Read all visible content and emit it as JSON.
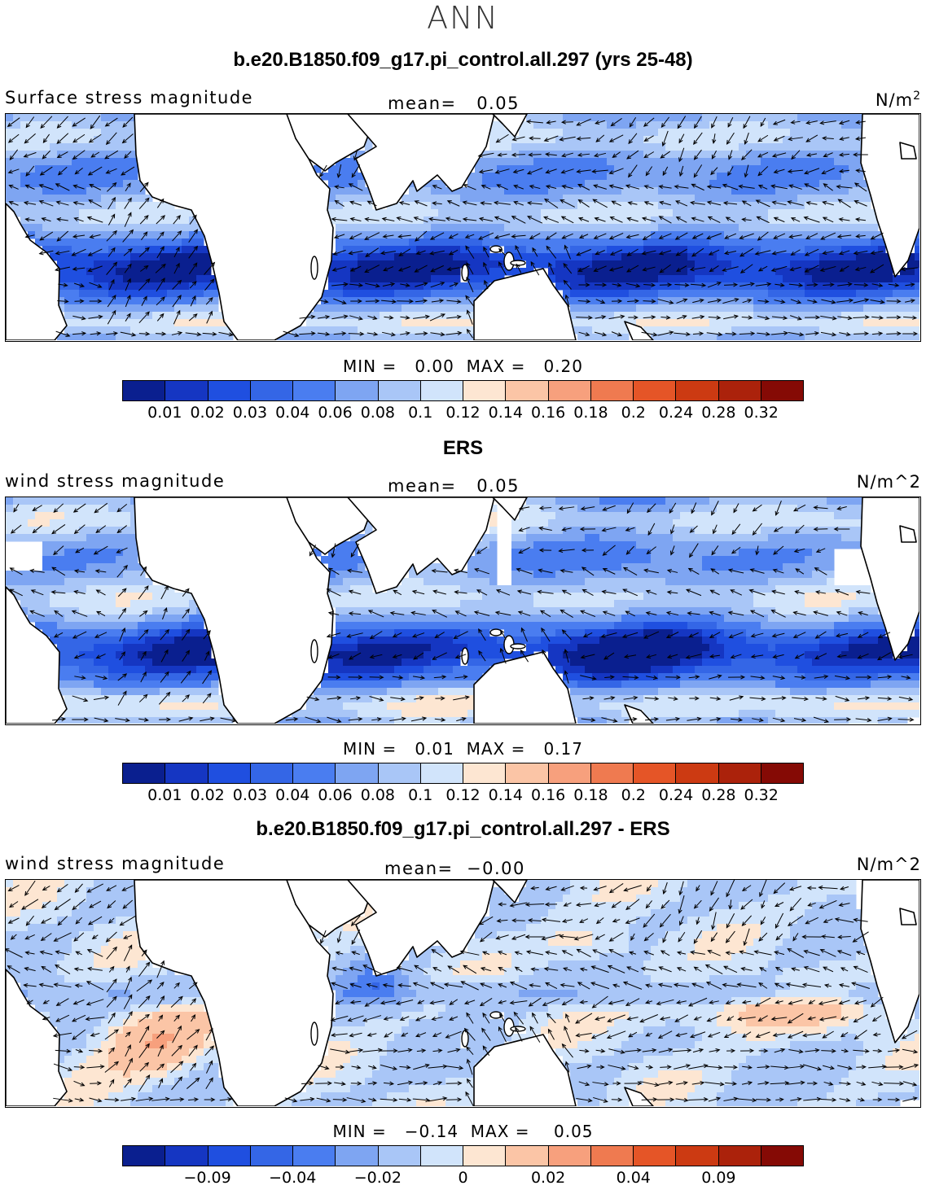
{
  "page_title": "ANN",
  "colors": {
    "scale": [
      "#0a1f8f",
      "#1536c2",
      "#1f4fe0",
      "#3466e6",
      "#4a7df0",
      "#7ea5f2",
      "#a9c6f7",
      "#d1e4fb",
      "#fde6d2",
      "#fbc5a6",
      "#f7a07d",
      "#ef7a50",
      "#e55527",
      "#cc3a12",
      "#ab220b",
      "#850a05"
    ],
    "land": "#ffffff",
    "coast": "#000000"
  },
  "panels": [
    {
      "title": "b.e20.B1850.f09_g17.pi_control.all.297 (yrs 25-48)",
      "variable": "Surface stress magnitude",
      "mean_label": "mean=",
      "mean_value": "0.05",
      "units": "N/m",
      "units_sup": "2",
      "min_label": "MIN =",
      "min_value": "0.00",
      "max_label": "MAX =",
      "max_value": "0.20",
      "colorbar_ticks": [
        "0.01",
        "0.02",
        "0.03",
        "0.04",
        "0.06",
        "0.08",
        "0.1",
        "0.12",
        "0.14",
        "0.16",
        "0.18",
        "0.2",
        "0.24",
        "0.28",
        "0.32"
      ],
      "field": "magnitude-model"
    },
    {
      "title": "ERS",
      "variable": "wind stress magnitude",
      "mean_label": "mean=",
      "mean_value": "0.05",
      "units": "N/m^2",
      "units_sup": "",
      "min_label": "MIN =",
      "min_value": "0.01",
      "max_label": "MAX =",
      "max_value": "0.17",
      "colorbar_ticks": [
        "0.01",
        "0.02",
        "0.03",
        "0.04",
        "0.06",
        "0.08",
        "0.1",
        "0.12",
        "0.14",
        "0.16",
        "0.18",
        "0.2",
        "0.24",
        "0.28",
        "0.32"
      ],
      "field": "magnitude-obs"
    },
    {
      "title": "b.e20.B1850.f09_g17.pi_control.all.297 - ERS",
      "variable": "wind stress magnitude",
      "mean_label": "mean=",
      "mean_value": "−0.00",
      "units": "N/m^2",
      "units_sup": "",
      "min_label": "MIN =",
      "min_value": "−0.14",
      "max_label": "MAX =",
      "max_value": "0.05",
      "colorbar_ticks": [
        "−0.09",
        "−0.04",
        "−0.02",
        "0",
        "0.02",
        "0.04",
        "0.09"
      ],
      "colorbar_tick_boundaries": [
        2,
        4,
        6,
        8,
        10,
        12,
        14
      ],
      "field": "difference"
    }
  ]
}
